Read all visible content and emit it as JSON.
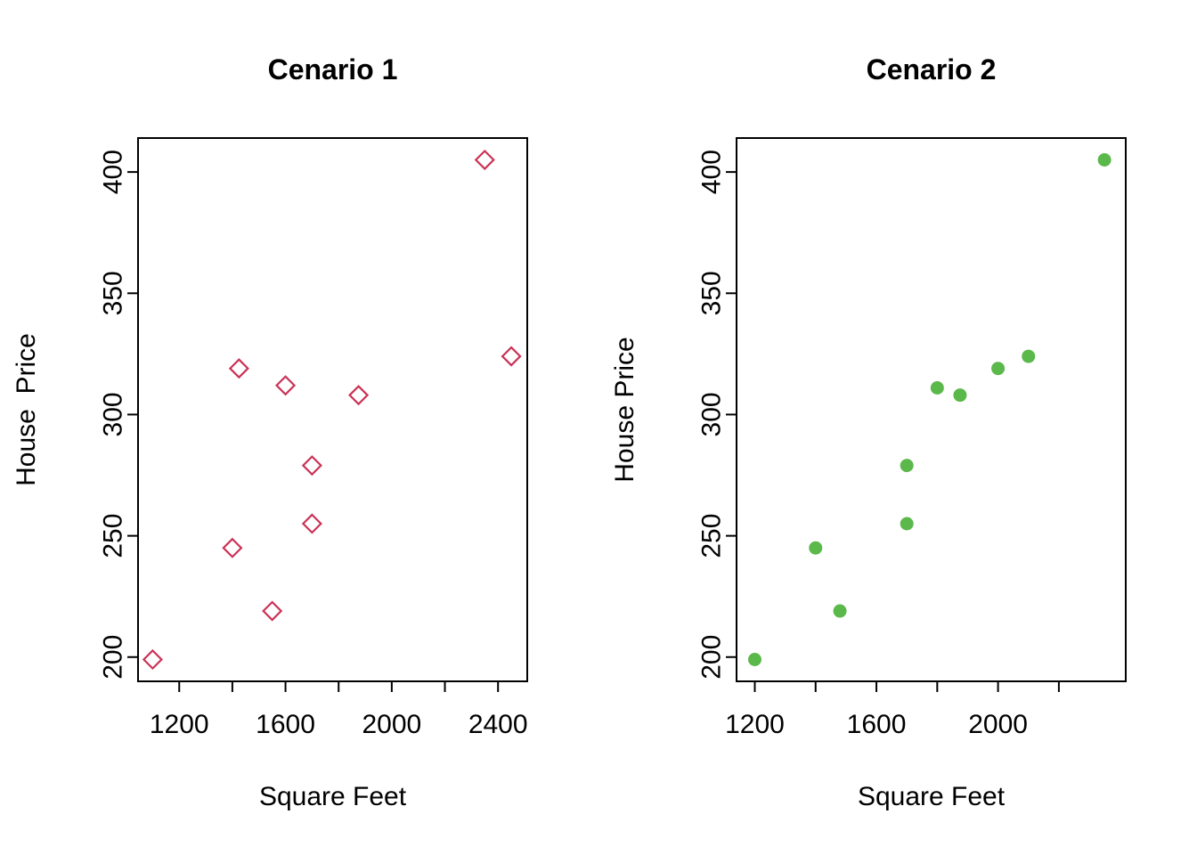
{
  "figure": {
    "background": "#ffffff"
  },
  "chart_data": [
    {
      "type": "scatter",
      "title": "Cenario 1",
      "xlabel": "Square Feet",
      "ylabel": "House  Price",
      "marker": "open-diamond",
      "color": "#cb3256",
      "xlim": [
        1045,
        2510
      ],
      "ylim": [
        190,
        414
      ],
      "xticks": [
        1200,
        1400,
        1600,
        1800,
        2000,
        2200,
        2400
      ],
      "xtick_labels": [
        "1200",
        "",
        "1600",
        "",
        "2000",
        "",
        "2400"
      ],
      "yticks": [
        200,
        250,
        300,
        350,
        400
      ],
      "ytick_labels": [
        "200",
        "250",
        "300",
        "350",
        "400"
      ],
      "grid": false,
      "legend": null,
      "points": {
        "x": [
          1100,
          1400,
          1425,
          1550,
          1600,
          1700,
          1700,
          1875,
          2350,
          2450
        ],
        "y": [
          199,
          245,
          319,
          219,
          312,
          279,
          255,
          308,
          405,
          324
        ]
      }
    },
    {
      "type": "scatter",
      "title": "Cenario 2",
      "xlabel": "Square Feet",
      "ylabel": "House Price",
      "marker": "filled-circle",
      "color": "#5bb84a",
      "xlim": [
        1140,
        2420
      ],
      "ylim": [
        190,
        414
      ],
      "xticks": [
        1200,
        1400,
        1600,
        1800,
        2000,
        2200
      ],
      "xtick_labels": [
        "1200",
        "",
        "1600",
        "",
        "2000",
        ""
      ],
      "yticks": [
        200,
        250,
        300,
        350,
        400
      ],
      "ytick_labels": [
        "200",
        "250",
        "300",
        "350",
        "400"
      ],
      "grid": false,
      "legend": null,
      "points": {
        "x": [
          1200,
          1400,
          1480,
          1700,
          1700,
          1800,
          1875,
          2000,
          2100,
          2350
        ],
        "y": [
          199,
          245,
          219,
          279,
          255,
          311,
          308,
          319,
          324,
          405
        ]
      }
    }
  ]
}
